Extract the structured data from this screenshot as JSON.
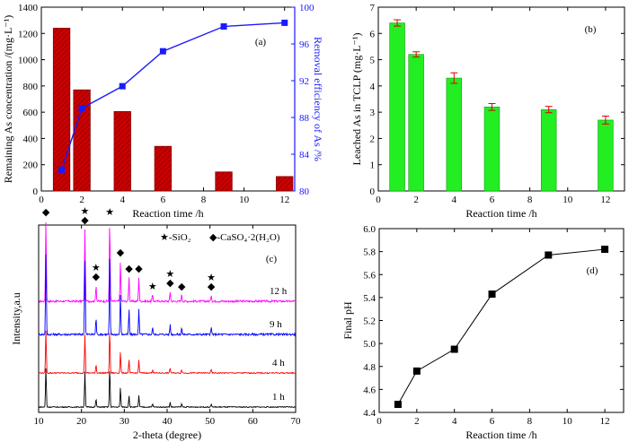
{
  "chart_data": [
    {
      "panel": "(a)",
      "type": "bar+line",
      "xlabel": "Reaction time /h",
      "ylabel": "Remaining As concentration /(mg·L⁻¹)",
      "y2label": "Removal efficiency of As /%",
      "xlim": [
        0,
        12.5
      ],
      "xticks": [
        "0",
        "2",
        "4",
        "6",
        "8",
        "10",
        "12"
      ],
      "ylim": [
        0,
        1400
      ],
      "yticks": [
        "0",
        "200",
        "400",
        "600",
        "800",
        "1000",
        "1200",
        "1400"
      ],
      "y2lim": [
        80,
        100
      ],
      "y2ticks": [
        "80",
        "84",
        "88",
        "92",
        "96",
        "100"
      ],
      "bar_color": "#cc0000",
      "line_color": "#1a1aff",
      "series": [
        {
          "kind": "bar",
          "x": [
            1,
            2,
            4,
            6,
            9,
            12
          ],
          "values": [
            1240,
            770,
            605,
            340,
            145,
            110
          ]
        },
        {
          "kind": "line",
          "axis": "right",
          "x": [
            1,
            2,
            4,
            6,
            9,
            12
          ],
          "values": [
            82.3,
            89.0,
            91.4,
            95.2,
            97.9,
            98.3
          ]
        }
      ]
    },
    {
      "panel": "(b)",
      "type": "bar",
      "xlabel": "Reaction time /h",
      "ylabel": "Leached As in TCLP (mg·L⁻¹)",
      "xlim": [
        0,
        13
      ],
      "xticks": [
        "0",
        "2",
        "4",
        "6",
        "8",
        "10",
        "12"
      ],
      "ylim": [
        0,
        7
      ],
      "yticks": [
        "0",
        "1",
        "2",
        "3",
        "4",
        "5",
        "6",
        "7"
      ],
      "bar_color": "#22ee22",
      "errbar_color": "#dd0000",
      "series": [
        {
          "kind": "bar",
          "x": [
            1,
            2,
            4,
            6,
            9,
            12
          ],
          "values": [
            6.4,
            5.2,
            4.3,
            3.2,
            3.1,
            2.7
          ],
          "errors": [
            0.12,
            0.1,
            0.2,
            0.13,
            0.12,
            0.15
          ]
        }
      ]
    },
    {
      "panel": "(c)",
      "type": "line",
      "xlabel": "2-theta (degree)",
      "ylabel": "Intensity,a.u",
      "xlim": [
        10,
        70
      ],
      "xticks": [
        "10",
        "20",
        "30",
        "40",
        "50",
        "60",
        "70"
      ],
      "legend": [
        "★-SiO₂",
        "◆-CaSO₄·2(H₂O)"
      ],
      "series": [
        {
          "name": "12 h",
          "color": "#ff00ff"
        },
        {
          "name": "9 h",
          "color": "#0000ff"
        },
        {
          "name": "4 h",
          "color": "#ff0000"
        },
        {
          "name": "1 h",
          "color": "#000000"
        }
      ],
      "peaks": [
        {
          "x": 11.7,
          "h": 1.0,
          "marker": "◆"
        },
        {
          "x": 20.8,
          "h": 0.9,
          "marker": "★◆"
        },
        {
          "x": 23.4,
          "h": 0.2,
          "marker": "★◆"
        },
        {
          "x": 26.6,
          "h": 1.0,
          "marker": "★"
        },
        {
          "x": 29.1,
          "h": 0.5,
          "marker": "◆"
        },
        {
          "x": 31.1,
          "h": 0.3,
          "marker": "◆"
        },
        {
          "x": 33.4,
          "h": 0.3,
          "marker": "◆"
        },
        {
          "x": 36.6,
          "h": 0.08,
          "marker": "★"
        },
        {
          "x": 40.7,
          "h": 0.12,
          "marker": "★◆"
        },
        {
          "x": 43.4,
          "h": 0.08,
          "marker": "◆"
        },
        {
          "x": 50.3,
          "h": 0.08,
          "marker": "★◆"
        }
      ]
    },
    {
      "panel": "(d)",
      "type": "line",
      "xlabel": "Reaction time /h",
      "ylabel": "Final pH",
      "xlim": [
        0,
        13
      ],
      "xticks": [
        "0",
        "2",
        "4",
        "6",
        "8",
        "10",
        "12"
      ],
      "ylim": [
        4.4,
        6.0
      ],
      "yticks": [
        "4.4",
        "4.6",
        "4.8",
        "5.0",
        "5.2",
        "5.4",
        "5.6",
        "5.8",
        "6.0"
      ],
      "series": [
        {
          "x": [
            1,
            2,
            4,
            6,
            9,
            12
          ],
          "values": [
            4.47,
            4.76,
            4.95,
            5.43,
            5.77,
            5.82
          ]
        }
      ]
    }
  ]
}
